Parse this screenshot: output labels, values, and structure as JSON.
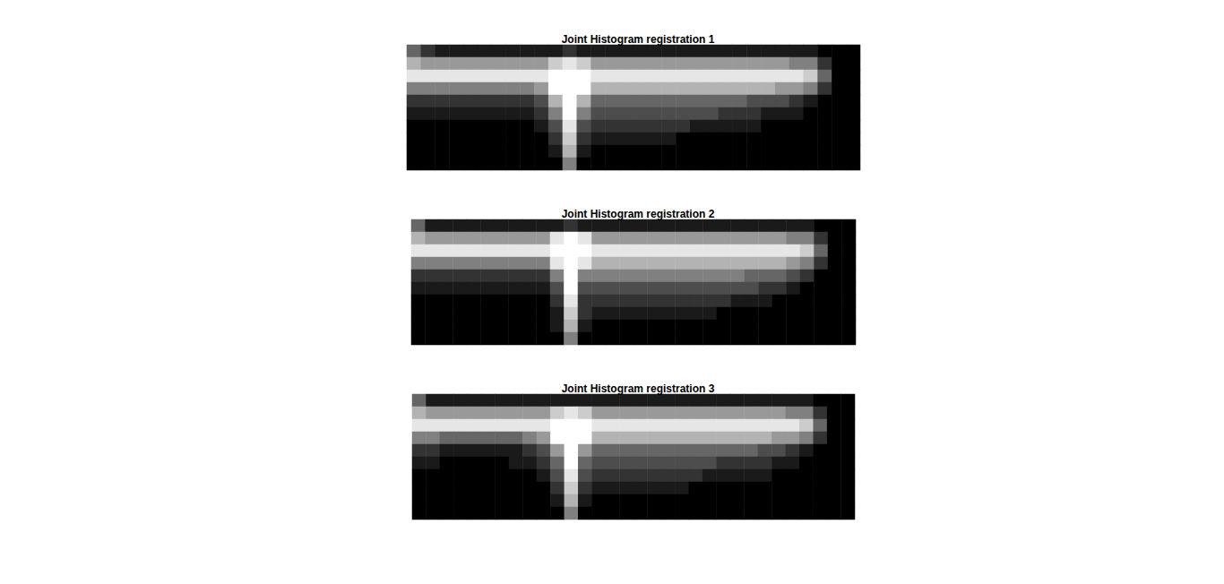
{
  "chart_data": [
    {
      "type": "heatmap",
      "title": "Joint Histogram registration 1",
      "tick_labels": false,
      "color_range": [
        0,
        1
      ],
      "cells": [
        [
          0.4,
          0.2,
          0.1,
          0.1,
          0.1,
          0.1,
          0.1,
          0.1,
          0.1,
          0.1,
          0.1,
          0.2,
          0.1,
          0.1,
          0.1,
          0.1,
          0.1,
          0.1,
          0.1,
          0.1,
          0.1,
          0.1,
          0.1,
          0.1,
          0.1,
          0.1,
          0.1,
          0.1,
          0.1,
          0,
          0,
          0
        ],
        [
          0.7,
          0.6,
          0.6,
          0.6,
          0.6,
          0.6,
          0.6,
          0.6,
          0.6,
          0.6,
          0.8,
          0.9,
          0.8,
          0.6,
          0.6,
          0.6,
          0.6,
          0.6,
          0.6,
          0.6,
          0.6,
          0.6,
          0.6,
          0.6,
          0.6,
          0.6,
          0.6,
          0.5,
          0.5,
          0.2,
          0,
          0
        ],
        [
          0.9,
          0.9,
          0.9,
          0.9,
          0.9,
          0.9,
          0.9,
          0.9,
          0.9,
          0.9,
          1,
          1,
          1,
          0.9,
          0.9,
          0.9,
          0.9,
          0.9,
          0.9,
          0.9,
          0.9,
          0.9,
          0.9,
          0.9,
          0.9,
          0.9,
          0.9,
          0.9,
          0.8,
          0.4,
          0,
          0
        ],
        [
          0.5,
          0.5,
          0.5,
          0.5,
          0.5,
          0.5,
          0.5,
          0.5,
          0.5,
          0.6,
          1,
          1,
          1,
          0.7,
          0.7,
          0.7,
          0.7,
          0.7,
          0.7,
          0.7,
          0.7,
          0.7,
          0.7,
          0.7,
          0.7,
          0.7,
          0.6,
          0.6,
          0.5,
          0.2,
          0,
          0
        ],
        [
          0.2,
          0.2,
          0.2,
          0.2,
          0.2,
          0.2,
          0.2,
          0.2,
          0.2,
          0.3,
          0.7,
          1,
          0.7,
          0.4,
          0.4,
          0.4,
          0.4,
          0.4,
          0.4,
          0.4,
          0.4,
          0.4,
          0.4,
          0.4,
          0.3,
          0.3,
          0.3,
          0.2,
          0.1,
          0,
          0,
          0
        ],
        [
          0.1,
          0.1,
          0.1,
          0.1,
          0.1,
          0.1,
          0.1,
          0.1,
          0.1,
          0.2,
          0.5,
          1,
          0.5,
          0.3,
          0.3,
          0.3,
          0.3,
          0.3,
          0.3,
          0.3,
          0.3,
          0.3,
          0.2,
          0.2,
          0.2,
          0.1,
          0.1,
          0.1,
          0,
          0,
          0,
          0
        ],
        [
          0,
          0,
          0,
          0,
          0,
          0,
          0,
          0,
          0,
          0.1,
          0.3,
          0.9,
          0.3,
          0.2,
          0.2,
          0.2,
          0.2,
          0.2,
          0.2,
          0.2,
          0.1,
          0.1,
          0.1,
          0.1,
          0.1,
          0,
          0,
          0,
          0,
          0,
          0,
          0
        ],
        [
          0,
          0,
          0,
          0,
          0,
          0,
          0,
          0,
          0,
          0,
          0.2,
          0.8,
          0.2,
          0.1,
          0.1,
          0.1,
          0.1,
          0.1,
          0.1,
          0,
          0,
          0,
          0,
          0,
          0,
          0,
          0,
          0,
          0,
          0,
          0,
          0
        ],
        [
          0,
          0,
          0,
          0,
          0,
          0,
          0,
          0,
          0,
          0,
          0.1,
          0.7,
          0.1,
          0,
          0,
          0,
          0,
          0,
          0,
          0,
          0,
          0,
          0,
          0,
          0,
          0,
          0,
          0,
          0,
          0,
          0,
          0
        ],
        [
          0,
          0,
          0,
          0,
          0,
          0,
          0,
          0,
          0,
          0,
          0,
          0.5,
          0,
          0,
          0,
          0,
          0,
          0,
          0,
          0,
          0,
          0,
          0,
          0,
          0,
          0,
          0,
          0,
          0,
          0,
          0,
          0
        ]
      ]
    },
    {
      "type": "heatmap",
      "title": "Joint Histogram registration 2",
      "tick_labels": false,
      "color_range": [
        0,
        1
      ],
      "cells": [
        [
          0.4,
          0.1,
          0.1,
          0.1,
          0.1,
          0.1,
          0.1,
          0.1,
          0.1,
          0.1,
          0.1,
          0.2,
          0.1,
          0.1,
          0.1,
          0.1,
          0.1,
          0.1,
          0.1,
          0.1,
          0.1,
          0.1,
          0.1,
          0.1,
          0.1,
          0.1,
          0.1,
          0.1,
          0.1,
          0,
          0,
          0
        ],
        [
          0.7,
          0.6,
          0.6,
          0.6,
          0.6,
          0.6,
          0.6,
          0.6,
          0.6,
          0.6,
          0.9,
          1,
          0.9,
          0.6,
          0.6,
          0.6,
          0.6,
          0.6,
          0.6,
          0.6,
          0.6,
          0.6,
          0.6,
          0.6,
          0.6,
          0.6,
          0.6,
          0.5,
          0.5,
          0.2,
          0,
          0
        ],
        [
          0.9,
          0.9,
          0.9,
          0.9,
          0.9,
          0.9,
          0.9,
          0.9,
          0.9,
          0.9,
          1,
          1,
          1,
          0.9,
          0.9,
          0.9,
          0.9,
          0.9,
          0.9,
          0.9,
          0.9,
          0.9,
          0.9,
          0.9,
          0.9,
          0.9,
          0.9,
          0.9,
          0.8,
          0.4,
          0,
          0
        ],
        [
          0.5,
          0.5,
          0.5,
          0.5,
          0.5,
          0.5,
          0.5,
          0.5,
          0.5,
          0.5,
          0.9,
          1,
          0.9,
          0.7,
          0.7,
          0.7,
          0.7,
          0.7,
          0.7,
          0.7,
          0.7,
          0.7,
          0.7,
          0.7,
          0.7,
          0.7,
          0.7,
          0.6,
          0.5,
          0.2,
          0,
          0
        ],
        [
          0.2,
          0.2,
          0.2,
          0.2,
          0.2,
          0.2,
          0.2,
          0.2,
          0.2,
          0.2,
          0.5,
          1,
          0.5,
          0.5,
          0.5,
          0.5,
          0.5,
          0.5,
          0.5,
          0.5,
          0.5,
          0.5,
          0.5,
          0.5,
          0.4,
          0.4,
          0.4,
          0.3,
          0.2,
          0,
          0,
          0
        ],
        [
          0.1,
          0.1,
          0.1,
          0.1,
          0.1,
          0.1,
          0.1,
          0.1,
          0.1,
          0.1,
          0.3,
          1,
          0.3,
          0.3,
          0.3,
          0.3,
          0.3,
          0.3,
          0.3,
          0.3,
          0.3,
          0.3,
          0.3,
          0.3,
          0.3,
          0.2,
          0.2,
          0.1,
          0,
          0,
          0,
          0
        ],
        [
          0,
          0,
          0,
          0,
          0,
          0,
          0,
          0,
          0,
          0,
          0.2,
          0.9,
          0.2,
          0.2,
          0.2,
          0.2,
          0.2,
          0.2,
          0.2,
          0.2,
          0.2,
          0.2,
          0.2,
          0.1,
          0.1,
          0.1,
          0,
          0,
          0,
          0,
          0,
          0
        ],
        [
          0,
          0,
          0,
          0,
          0,
          0,
          0,
          0,
          0,
          0,
          0.1,
          0.8,
          0.2,
          0.1,
          0.1,
          0.1,
          0.1,
          0.1,
          0.1,
          0.1,
          0.1,
          0.1,
          0,
          0,
          0,
          0,
          0,
          0,
          0,
          0,
          0,
          0
        ],
        [
          0,
          0,
          0,
          0,
          0,
          0,
          0,
          0,
          0,
          0,
          0.1,
          0.7,
          0.1,
          0,
          0,
          0,
          0,
          0,
          0,
          0,
          0,
          0,
          0,
          0,
          0,
          0,
          0,
          0,
          0,
          0,
          0,
          0
        ],
        [
          0,
          0,
          0,
          0,
          0,
          0,
          0,
          0,
          0,
          0,
          0,
          0.5,
          0,
          0,
          0,
          0,
          0,
          0,
          0,
          0,
          0,
          0,
          0,
          0,
          0,
          0,
          0,
          0,
          0,
          0,
          0,
          0
        ]
      ]
    },
    {
      "type": "heatmap",
      "title": "Joint Histogram registration 3",
      "tick_labels": false,
      "color_range": [
        0,
        1
      ],
      "cells": [
        [
          0.4,
          0.1,
          0.1,
          0.1,
          0.1,
          0.1,
          0.1,
          0.1,
          0.1,
          0.1,
          0.1,
          0.1,
          0.1,
          0.1,
          0.1,
          0.1,
          0.1,
          0.1,
          0.1,
          0.1,
          0.1,
          0.1,
          0.1,
          0.1,
          0.1,
          0.1,
          0.1,
          0.1,
          0.1,
          0,
          0,
          0
        ],
        [
          0.7,
          0.6,
          0.6,
          0.6,
          0.6,
          0.6,
          0.6,
          0.6,
          0.6,
          0.6,
          0.8,
          0.9,
          0.8,
          0.6,
          0.6,
          0.6,
          0.6,
          0.6,
          0.6,
          0.6,
          0.6,
          0.6,
          0.6,
          0.6,
          0.6,
          0.6,
          0.6,
          0.5,
          0.5,
          0.2,
          0,
          0
        ],
        [
          0.9,
          0.9,
          0.9,
          0.9,
          0.9,
          0.9,
          0.9,
          0.9,
          0.9,
          0.9,
          1,
          1,
          1,
          0.9,
          0.9,
          0.9,
          0.9,
          0.9,
          0.9,
          0.9,
          0.9,
          0.9,
          0.9,
          0.9,
          0.9,
          0.9,
          0.9,
          0.9,
          0.8,
          0.4,
          0,
          0
        ],
        [
          0.5,
          0.5,
          0.4,
          0.4,
          0.4,
          0.4,
          0.4,
          0.4,
          0.5,
          0.6,
          1,
          1,
          1,
          0.7,
          0.7,
          0.7,
          0.7,
          0.7,
          0.7,
          0.7,
          0.7,
          0.7,
          0.7,
          0.7,
          0.7,
          0.7,
          0.6,
          0.6,
          0.5,
          0.2,
          0,
          0
        ],
        [
          0.2,
          0.2,
          0.1,
          0.1,
          0.1,
          0.1,
          0.1,
          0.1,
          0.2,
          0.3,
          0.6,
          1,
          0.6,
          0.4,
          0.4,
          0.4,
          0.4,
          0.4,
          0.4,
          0.4,
          0.4,
          0.4,
          0.4,
          0.4,
          0.4,
          0.3,
          0.3,
          0.2,
          0.1,
          0,
          0,
          0
        ],
        [
          0.1,
          0.1,
          0,
          0,
          0,
          0,
          0,
          0.1,
          0.1,
          0.2,
          0.4,
          1,
          0.4,
          0.3,
          0.3,
          0.3,
          0.3,
          0.3,
          0.3,
          0.3,
          0.3,
          0.3,
          0.2,
          0.2,
          0.2,
          0.2,
          0.1,
          0.1,
          0,
          0,
          0,
          0
        ],
        [
          0,
          0,
          0,
          0,
          0,
          0,
          0,
          0,
          0,
          0.1,
          0.3,
          0.9,
          0.3,
          0.2,
          0.2,
          0.2,
          0.2,
          0.2,
          0.2,
          0.2,
          0.2,
          0.1,
          0.1,
          0.1,
          0.1,
          0.1,
          0,
          0,
          0,
          0,
          0,
          0
        ],
        [
          0,
          0,
          0,
          0,
          0,
          0,
          0,
          0,
          0,
          0,
          0.2,
          0.8,
          0.2,
          0.1,
          0.1,
          0.1,
          0.1,
          0.1,
          0.1,
          0.1,
          0,
          0,
          0,
          0,
          0,
          0,
          0,
          0,
          0,
          0,
          0,
          0
        ],
        [
          0,
          0,
          0,
          0,
          0,
          0,
          0,
          0,
          0,
          0,
          0.1,
          0.7,
          0.1,
          0,
          0,
          0,
          0,
          0,
          0,
          0,
          0,
          0,
          0,
          0,
          0,
          0,
          0,
          0,
          0,
          0,
          0,
          0
        ],
        [
          0,
          0,
          0,
          0,
          0,
          0,
          0,
          0,
          0,
          0,
          0,
          0.5,
          0,
          0,
          0,
          0,
          0,
          0,
          0,
          0,
          0,
          0,
          0,
          0,
          0,
          0,
          0,
          0,
          0,
          0,
          0,
          0
        ]
      ]
    }
  ]
}
